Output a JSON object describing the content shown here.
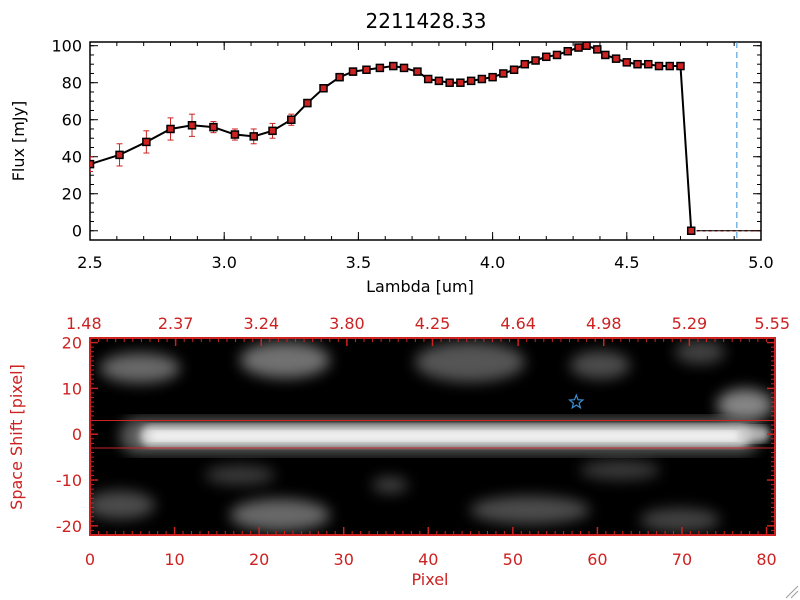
{
  "chart_data": [
    {
      "type": "line",
      "title": "2211428.33",
      "xlabel": "Lambda [um]",
      "ylabel": "Flux [mJy]",
      "xlim": [
        2.5,
        5.0
      ],
      "ylim": [
        -5,
        102
      ],
      "x_ticks": [
        "2.5",
        "3.0",
        "3.5",
        "4.0",
        "4.5",
        "5.0"
      ],
      "y_ticks": [
        "0",
        "20",
        "40",
        "60",
        "80",
        "100"
      ],
      "grid": false,
      "line_color": "#000000",
      "marker_color": "#cc2222",
      "errorbar_color": "#cc2222",
      "vline": {
        "x": 4.91,
        "color": "#3b8fd8",
        "style": "dashed"
      },
      "series": [
        {
          "x": [
            2.5,
            2.61,
            2.71,
            2.8,
            2.88,
            2.96,
            3.04,
            3.11,
            3.18,
            3.25,
            3.31,
            3.37,
            3.43,
            3.48,
            3.53,
            3.58,
            3.63,
            3.67,
            3.72,
            3.76,
            3.8,
            3.84,
            3.88,
            3.92,
            3.96,
            4.0,
            4.04,
            4.08,
            4.12,
            4.16,
            4.2,
            4.24,
            4.28,
            4.32,
            4.35,
            4.39,
            4.42,
            4.46,
            4.5,
            4.54,
            4.58,
            4.62,
            4.66,
            4.7,
            4.74
          ],
          "y": [
            36,
            41,
            48,
            55,
            57,
            56,
            52,
            51,
            54,
            60,
            69,
            77,
            83,
            86,
            87,
            88,
            89,
            88,
            86,
            82,
            81,
            80,
            80,
            81,
            82,
            83,
            85,
            87,
            90,
            92,
            94,
            95,
            97,
            99,
            100,
            98,
            95,
            93,
            91,
            90,
            90,
            89,
            89,
            89,
            0
          ],
          "yerr": [
            4,
            6,
            6,
            6,
            6,
            3,
            3,
            4,
            4,
            3,
            2,
            2,
            2,
            2,
            1,
            1,
            1,
            1,
            1,
            1,
            1,
            1,
            1,
            1,
            1,
            1,
            1,
            1,
            1,
            1,
            1,
            1,
            1,
            1,
            1,
            1,
            1,
            1,
            1,
            1,
            1,
            1,
            1,
            1,
            1
          ]
        },
        {
          "x": [
            4.76,
            4.8,
            4.84,
            4.88,
            4.92,
            4.96,
            5.0
          ],
          "y": [
            0,
            0,
            0,
            0,
            0,
            0,
            0
          ]
        }
      ]
    },
    {
      "type": "heatmap",
      "xlabel": "Pixel",
      "ylabel": "Space Shift [pixel]",
      "xlim": [
        0,
        81
      ],
      "ylim": [
        -22,
        21
      ],
      "x_ticks": [
        "0",
        "10",
        "20",
        "30",
        "40",
        "50",
        "60",
        "70",
        "80"
      ],
      "y_ticks": [
        "-20",
        "-10",
        "0",
        "10",
        "20"
      ],
      "top_ticks": [
        "1.48",
        "2.37",
        "3.24",
        "3.80",
        "4.25",
        "4.64",
        "4.98",
        "5.29",
        "5.55"
      ],
      "axis_color": "#cc2222",
      "colormap": "grayscale",
      "extraction_lines_y": [
        3,
        -3
      ],
      "star_marker": {
        "x": 57.5,
        "y": 7
      }
    }
  ]
}
